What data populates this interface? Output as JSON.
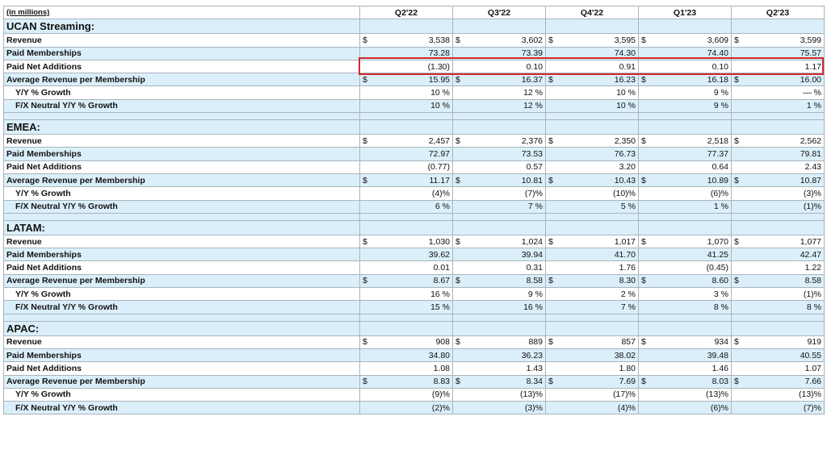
{
  "header": {
    "note": "(in millions)",
    "periods": [
      "Q2'22",
      "Q3'22",
      "Q4'22",
      "Q1'23",
      "Q2'23"
    ]
  },
  "sections": [
    {
      "title": "UCAN Streaming:",
      "rows": [
        {
          "label": "Revenue",
          "currency": "$",
          "values": [
            "3,538",
            "3,602",
            "3,595",
            "3,609",
            "3,599"
          ]
        },
        {
          "label": "Paid Memberships",
          "values": [
            "73.28",
            "73.39",
            "74.30",
            "74.40",
            "75.57"
          ]
        },
        {
          "label": "Paid Net Additions",
          "values": [
            "(1.30)",
            "0.10",
            "0.91",
            "0.10",
            "1.17"
          ]
        },
        {
          "label": "Average Revenue per Membership",
          "currency": "$",
          "values": [
            "15.95",
            "16.37",
            "16.23",
            "16.18",
            "16.00"
          ]
        },
        {
          "label": "Y/Y % Growth",
          "values": [
            "10 %",
            "12 %",
            "10 %",
            "9 %",
            "— %"
          ]
        },
        {
          "label": "F/X Neutral Y/Y % Growth",
          "values": [
            "10 %",
            "12 %",
            "10 %",
            "9 %",
            "1 %"
          ]
        }
      ]
    },
    {
      "title": "EMEA:",
      "rows": [
        {
          "label": "Revenue",
          "currency": "$",
          "values": [
            "2,457",
            "2,376",
            "2,350",
            "2,518",
            "2,562"
          ]
        },
        {
          "label": "Paid Memberships",
          "values": [
            "72.97",
            "73.53",
            "76.73",
            "77.37",
            "79.81"
          ]
        },
        {
          "label": "Paid Net Additions",
          "values": [
            "(0.77)",
            "0.57",
            "3.20",
            "0.64",
            "2.43"
          ]
        },
        {
          "label": "Average Revenue per Membership",
          "currency": "$",
          "values": [
            "11.17",
            "10.81",
            "10.43",
            "10.89",
            "10.87"
          ]
        },
        {
          "label": "Y/Y % Growth",
          "values": [
            "(4)%",
            "(7)%",
            "(10)%",
            "(6)%",
            "(3)%"
          ]
        },
        {
          "label": "F/X Neutral Y/Y % Growth",
          "values": [
            "6 %",
            "7 %",
            "5 %",
            "1 %",
            "(1)%"
          ]
        }
      ]
    },
    {
      "title": "LATAM:",
      "rows": [
        {
          "label": "Revenue",
          "currency": "$",
          "values": [
            "1,030",
            "1,024",
            "1,017",
            "1,070",
            "1,077"
          ]
        },
        {
          "label": "Paid Memberships",
          "values": [
            "39.62",
            "39.94",
            "41.70",
            "41.25",
            "42.47"
          ]
        },
        {
          "label": "Paid Net Additions",
          "values": [
            "0.01",
            "0.31",
            "1.76",
            "(0.45)",
            "1.22"
          ]
        },
        {
          "label": "Average Revenue per Membership",
          "currency": "$",
          "values": [
            "8.67",
            "8.58",
            "8.30",
            "8.60",
            "8.58"
          ]
        },
        {
          "label": "Y/Y % Growth",
          "values": [
            "16 %",
            "9 %",
            "2 %",
            "3 %",
            "(1)%"
          ]
        },
        {
          "label": "F/X Neutral Y/Y % Growth",
          "values": [
            "15 %",
            "16 %",
            "7 %",
            "8 %",
            "8 %"
          ]
        }
      ]
    },
    {
      "title": "APAC:",
      "rows": [
        {
          "label": "Revenue",
          "currency": "$",
          "values": [
            "908",
            "889",
            "857",
            "934",
            "919"
          ]
        },
        {
          "label": "Paid Memberships",
          "values": [
            "34.80",
            "36.23",
            "38.02",
            "39.48",
            "40.55"
          ]
        },
        {
          "label": "Paid Net Additions",
          "values": [
            "1.08",
            "1.43",
            "1.80",
            "1.46",
            "1.07"
          ]
        },
        {
          "label": "Average Revenue per Membership",
          "currency": "$",
          "values": [
            "8.83",
            "8.34",
            "7.69",
            "8.03",
            "7.66"
          ]
        },
        {
          "label": "Y/Y % Growth",
          "values": [
            "(9)%",
            "(13)%",
            "(17)%",
            "(13)%",
            "(13)%"
          ]
        },
        {
          "label": "F/X Neutral Y/Y % Growth",
          "values": [
            "(2)%",
            "(3)%",
            "(4)%",
            "(6)%",
            "(7)%"
          ]
        }
      ]
    }
  ]
}
